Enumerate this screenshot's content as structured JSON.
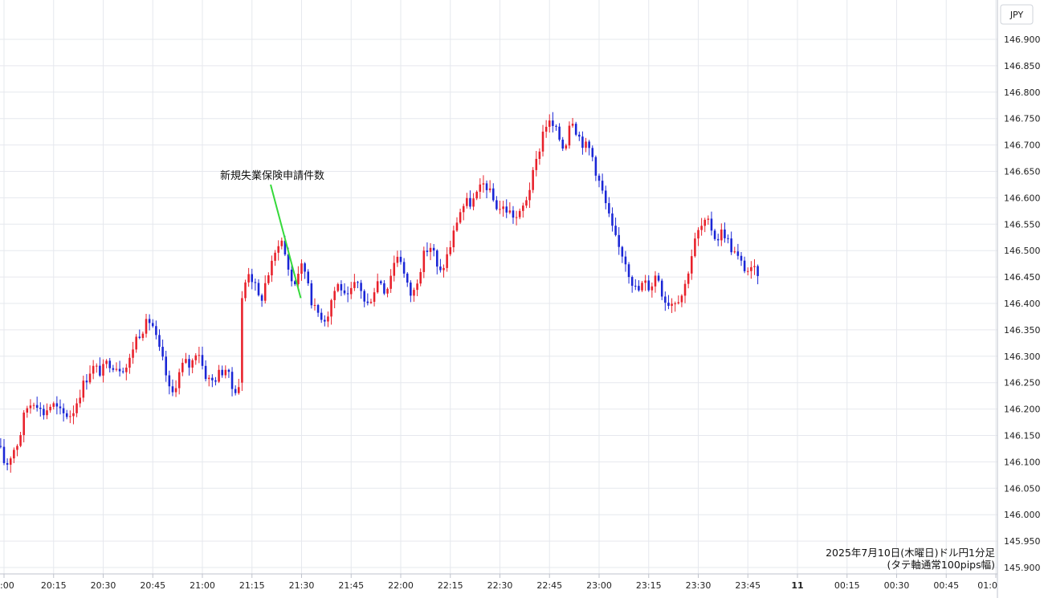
{
  "chart_data": {
    "type": "candlestick",
    "currency_label": "JPY",
    "ylim": [
      145.9,
      146.9
    ],
    "y_ticks": [
      "146.900",
      "146.850",
      "146.800",
      "146.750",
      "146.700",
      "146.650",
      "146.600",
      "146.550",
      "146.500",
      "146.450",
      "146.400",
      "146.350",
      "146.300",
      "146.250",
      "146.200",
      "146.150",
      "146.100",
      "146.050",
      "146.000",
      "145.950",
      "145.900"
    ],
    "x_range_minutes": [
      1200,
      1659
    ],
    "x_ticks": [
      {
        "label": ":00",
        "minute": 1200
      },
      {
        "label": "20:15",
        "minute": 1215
      },
      {
        "label": "20:30",
        "minute": 1230
      },
      {
        "label": "20:45",
        "minute": 1245
      },
      {
        "label": "21:00",
        "minute": 1260
      },
      {
        "label": "21:15",
        "minute": 1275
      },
      {
        "label": "21:30",
        "minute": 1290
      },
      {
        "label": "21:45",
        "minute": 1305
      },
      {
        "label": "22:00",
        "minute": 1320
      },
      {
        "label": "22:15",
        "minute": 1335
      },
      {
        "label": "22:30",
        "minute": 1350
      },
      {
        "label": "22:45",
        "minute": 1365
      },
      {
        "label": "23:00",
        "minute": 1380
      },
      {
        "label": "23:15",
        "minute": 1395
      },
      {
        "label": "23:30",
        "minute": 1410
      },
      {
        "label": "23:45",
        "minute": 1425
      },
      {
        "label": "11",
        "minute": 1440
      },
      {
        "label": "00:15",
        "minute": 1455
      },
      {
        "label": "00:30",
        "minute": 1470
      },
      {
        "label": "00:45",
        "minute": 1485
      },
      {
        "label": "01:0",
        "minute": 1500
      }
    ],
    "colors": {
      "up": "#e8202a",
      "down": "#1a26d6",
      "annotation_line": "#35d93a"
    },
    "annotation": {
      "text": "新規失業保険申請件数",
      "minute": 1290,
      "price": 146.41
    },
    "caption_lines": [
      "2025年7月10日(木曜日)ドル円1分足",
      "(タテ軸通常100pips幅)"
    ],
    "anchors": [
      [
        1199,
        146.13
      ],
      [
        1201,
        146.09
      ],
      [
        1203,
        146.12
      ],
      [
        1205,
        146.14
      ],
      [
        1207,
        146.2
      ],
      [
        1210,
        146.22
      ],
      [
        1212,
        146.19
      ],
      [
        1215,
        146.21
      ],
      [
        1218,
        146.19
      ],
      [
        1221,
        146.19
      ],
      [
        1224,
        146.24
      ],
      [
        1227,
        146.28
      ],
      [
        1230,
        146.27
      ],
      [
        1232,
        146.29
      ],
      [
        1235,
        146.28
      ],
      [
        1238,
        146.28
      ],
      [
        1240,
        146.33
      ],
      [
        1242,
        146.35
      ],
      [
        1245,
        146.37
      ],
      [
        1247,
        146.32
      ],
      [
        1249,
        146.28
      ],
      [
        1251,
        146.22
      ],
      [
        1253,
        146.26
      ],
      [
        1255,
        146.29
      ],
      [
        1257,
        146.28
      ],
      [
        1259,
        146.32
      ],
      [
        1261,
        146.27
      ],
      [
        1263,
        146.25
      ],
      [
        1266,
        146.27
      ],
      [
        1268,
        146.28
      ],
      [
        1269,
        146.24
      ],
      [
        1271,
        146.24
      ],
      [
        1272,
        146.25
      ],
      [
        1273,
        146.41
      ],
      [
        1274,
        146.47
      ],
      [
        1276,
        146.44
      ],
      [
        1278,
        146.4
      ],
      [
        1280,
        146.45
      ],
      [
        1282,
        146.48
      ],
      [
        1284,
        146.53
      ],
      [
        1286,
        146.48
      ],
      [
        1288,
        146.43
      ],
      [
        1290,
        146.47
      ],
      [
        1292,
        146.46
      ],
      [
        1294,
        146.39
      ],
      [
        1296,
        146.38
      ],
      [
        1298,
        146.37
      ],
      [
        1300,
        146.42
      ],
      [
        1302,
        146.44
      ],
      [
        1304,
        146.4
      ],
      [
        1306,
        146.43
      ],
      [
        1308,
        146.44
      ],
      [
        1310,
        146.39
      ],
      [
        1312,
        146.42
      ],
      [
        1314,
        146.45
      ],
      [
        1316,
        146.42
      ],
      [
        1318,
        146.47
      ],
      [
        1320,
        146.5
      ],
      [
        1322,
        146.44
      ],
      [
        1324,
        146.41
      ],
      [
        1326,
        146.46
      ],
      [
        1328,
        146.5
      ],
      [
        1330,
        146.51
      ],
      [
        1332,
        146.45
      ],
      [
        1334,
        146.48
      ],
      [
        1336,
        146.52
      ],
      [
        1338,
        146.57
      ],
      [
        1340,
        146.59
      ],
      [
        1342,
        146.59
      ],
      [
        1344,
        146.61
      ],
      [
        1346,
        146.63
      ],
      [
        1348,
        146.6
      ],
      [
        1350,
        146.58
      ],
      [
        1352,
        146.58
      ],
      [
        1354,
        146.57
      ],
      [
        1356,
        146.56
      ],
      [
        1358,
        146.59
      ],
      [
        1360,
        146.63
      ],
      [
        1362,
        146.68
      ],
      [
        1364,
        146.74
      ],
      [
        1366,
        146.74
      ],
      [
        1368,
        146.72
      ],
      [
        1370,
        146.69
      ],
      [
        1372,
        146.76
      ],
      [
        1374,
        146.72
      ],
      [
        1376,
        146.7
      ],
      [
        1378,
        146.69
      ],
      [
        1380,
        146.64
      ],
      [
        1382,
        146.6
      ],
      [
        1384,
        146.55
      ],
      [
        1386,
        146.51
      ],
      [
        1388,
        146.49
      ],
      [
        1390,
        146.45
      ],
      [
        1392,
        146.42
      ],
      [
        1394,
        146.44
      ],
      [
        1396,
        146.43
      ],
      [
        1398,
        146.46
      ],
      [
        1400,
        146.41
      ],
      [
        1402,
        146.4
      ],
      [
        1404,
        146.41
      ],
      [
        1406,
        146.42
      ],
      [
        1408,
        146.48
      ],
      [
        1410,
        146.53
      ],
      [
        1412,
        146.55
      ],
      [
        1414,
        146.55
      ],
      [
        1416,
        146.52
      ],
      [
        1418,
        146.54
      ],
      [
        1420,
        146.51
      ],
      [
        1422,
        146.49
      ],
      [
        1424,
        146.47
      ],
      [
        1426,
        146.46
      ],
      [
        1428,
        146.46
      ]
    ]
  }
}
